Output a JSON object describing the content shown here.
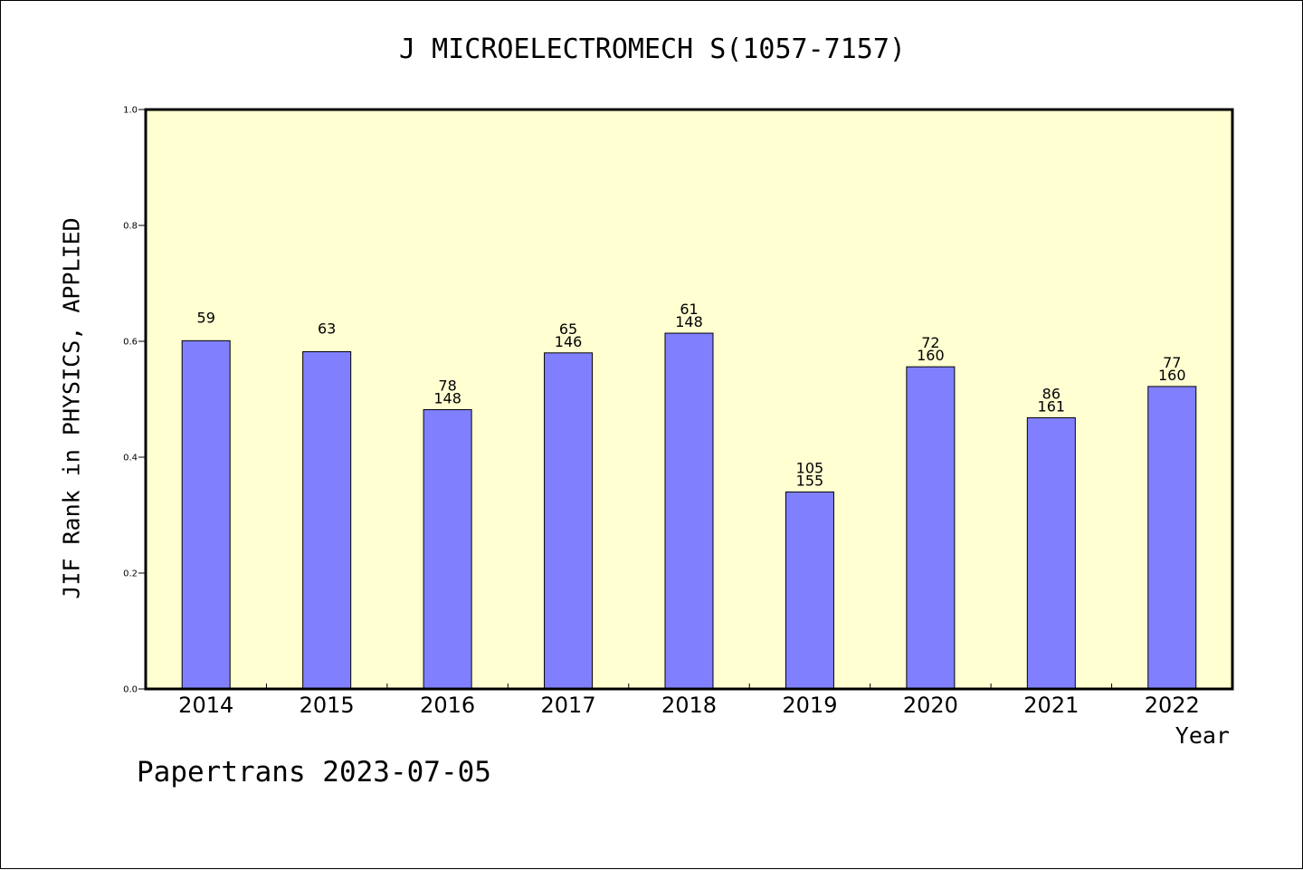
{
  "chart_data": {
    "type": "bar",
    "title": "J MICROELECTROMECH S(1057-7157)",
    "xlabel": "Year",
    "ylabel": "JIF Rank in PHYSICS, APPLIED",
    "ylim": [
      0,
      1.0
    ],
    "yticks": [
      "0.0",
      "0.2",
      "0.4",
      "0.6",
      "0.8",
      "1.0"
    ],
    "categories": [
      "2014",
      "2015",
      "2016",
      "2017",
      "2018",
      "2019",
      "2020",
      "2021",
      "2022"
    ],
    "values": [
      0.601,
      0.582,
      0.482,
      0.58,
      0.614,
      0.34,
      0.556,
      0.468,
      0.522
    ],
    "labels_top": [
      "59",
      "63",
      "78",
      "65",
      "61",
      "105",
      "72",
      "86",
      "77"
    ],
    "labels_bottom": [
      "",
      "",
      "148",
      "146",
      "148",
      "155",
      "160",
      "161",
      "160"
    ],
    "grid": false,
    "colors": {
      "plot_bg": "#ffffd2",
      "bar": "#8080ff",
      "axis": "#000000"
    }
  },
  "footer": "Papertrans 2023-07-05"
}
